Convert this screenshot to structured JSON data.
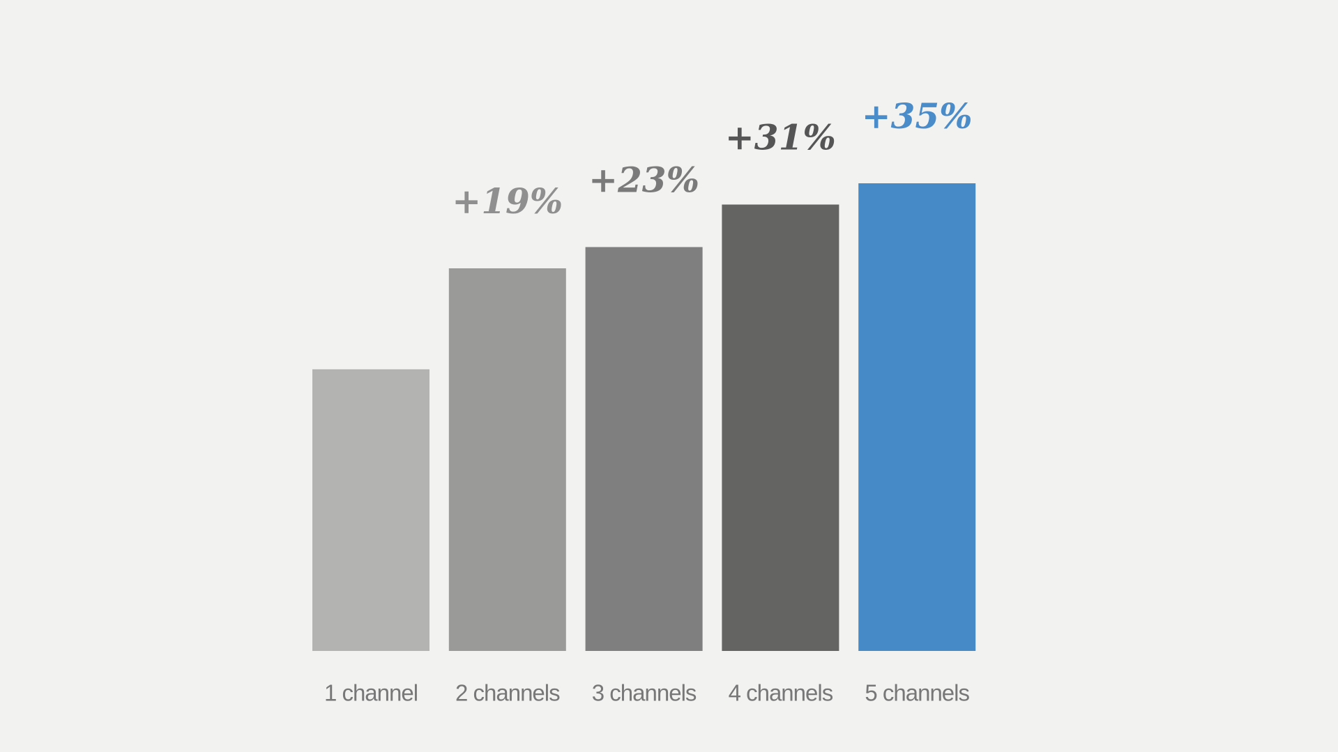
{
  "chart_data": {
    "type": "bar",
    "categories": [
      "1 channel",
      "2 channels",
      "3 channels",
      "4 channels",
      "5 channels"
    ],
    "values": [
      0,
      19,
      23,
      31,
      35
    ],
    "value_labels": [
      null,
      "+19%",
      "+23%",
      "+31%",
      "+35%"
    ],
    "colors": [
      "#b3b3b1",
      "#9a9a98",
      "#7f7f7f",
      "#646463",
      "#468bc8"
    ],
    "label_colors": [
      "#999999",
      "#8f8f8f",
      "#7a7a7a",
      "#555555",
      "#4a8bc9"
    ],
    "ylim": [
      -53,
      43
    ]
  }
}
